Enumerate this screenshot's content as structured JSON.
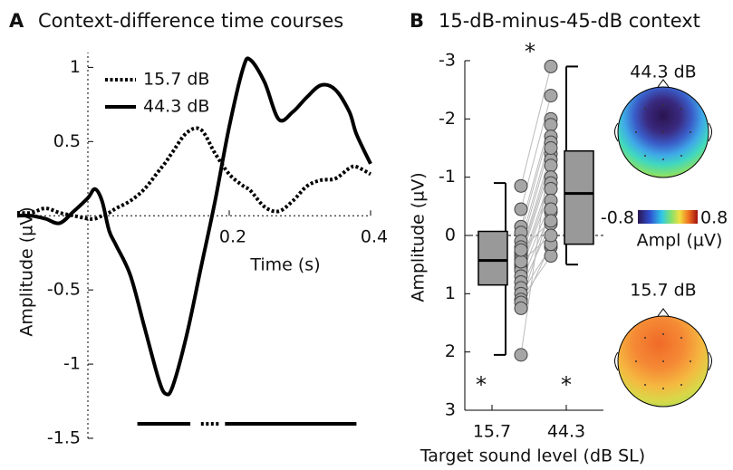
{
  "chart_data": [
    {
      "type": "line",
      "panel": "A",
      "title": "Context-difference time courses",
      "x_label": "Time (s)",
      "y_label": "Amplitude (µV)",
      "x": [
        -0.1,
        -0.08,
        -0.06,
        -0.04,
        -0.02,
        0,
        0.01,
        0.02,
        0.03,
        0.04,
        0.06,
        0.08,
        0.1,
        0.11,
        0.12,
        0.14,
        0.16,
        0.18,
        0.2,
        0.22,
        0.23,
        0.25,
        0.27,
        0.29,
        0.31,
        0.33,
        0.35,
        0.37,
        0.38,
        0.4
      ],
      "series": [
        {
          "name": "15.7 dB",
          "color": "#000000",
          "dash": "dotted",
          "values": [
            0.02,
            0.02,
            0.05,
            0.02,
            0,
            -0.02,
            -0.02,
            0,
            0.02,
            0.05,
            0.1,
            0.18,
            0.3,
            0.36,
            0.43,
            0.56,
            0.58,
            0.42,
            0.28,
            0.2,
            0.17,
            0.06,
            0.03,
            0.1,
            0.2,
            0.24,
            0.25,
            0.32,
            0.33,
            0.28
          ],
          "significant_intervals": [
            [
              0.16,
              0.187
            ]
          ]
        },
        {
          "name": "44.3 dB",
          "color": "#000000",
          "dash": "solid",
          "values": [
            0,
            0,
            -0.02,
            -0.05,
            0.03,
            0.12,
            0.18,
            0.1,
            -0.1,
            -0.2,
            -0.4,
            -0.75,
            -1.1,
            -1.2,
            -1.15,
            -0.8,
            -0.35,
            0.1,
            0.6,
            1.0,
            1.05,
            0.9,
            0.65,
            0.7,
            0.8,
            0.88,
            0.85,
            0.7,
            0.55,
            0.35
          ],
          "significant_intervals": [
            [
              0.07,
              0.145
            ],
            [
              0.194,
              0.38
            ]
          ]
        }
      ],
      "xlim": [
        -0.1,
        0.4
      ],
      "xticks": [
        0.2,
        0.4
      ],
      "ylim": [
        -1.5,
        1.1
      ],
      "yticks": [
        -1.5,
        -1,
        -0.5,
        0.5,
        1
      ],
      "legend": "upper left"
    },
    {
      "type": "box",
      "panel": "B",
      "title": "15-dB-minus-45-dB context",
      "x_label": "Target sound level (dB SL)",
      "y_label": "Amplitude (µV)",
      "categories": [
        "15.7",
        "44.3"
      ],
      "boxes": [
        {
          "whislo": -0.9,
          "q1": -0.07,
          "median": 0.43,
          "q3": 0.85,
          "whishi": 2.05
        },
        {
          "whislo": -2.9,
          "q1": -1.45,
          "median": -0.72,
          "q3": 0.15,
          "whishi": 0.5
        }
      ],
      "points": [
        [
          -0.85,
          -0.45,
          -0.15,
          -0.05,
          0.1,
          0.2,
          0.3,
          0.35,
          0.4,
          0.5,
          0.55,
          0.6,
          0.7,
          0.8,
          0.9,
          1.0,
          1.1,
          1.15,
          1.25,
          0.45,
          0.25,
          2.05
        ],
        [
          -2.9,
          -2.4,
          -2.0,
          -1.9,
          -1.7,
          -1.6,
          -1.4,
          -1.3,
          -1.2,
          -1.0,
          -0.9,
          -0.8,
          -0.6,
          -0.4,
          -0.2,
          0.2,
          0.35,
          -0.45,
          0.15,
          0,
          -0.25,
          -1.5
        ]
      ],
      "box_color": "#999999",
      "point_color": "#a6a6a6",
      "ylim": [
        -3,
        3
      ],
      "yticks": [
        -3,
        -2,
        -1,
        0,
        1,
        2,
        3
      ],
      "invert_y": true,
      "annotations": [
        "*",
        "*",
        "*"
      ],
      "topomaps": [
        {
          "title": "44.3 dB"
        },
        {
          "title": "15.7 dB"
        }
      ],
      "colorbar": {
        "label": "Ampl (µV)",
        "lim": [
          -0.8,
          0.8
        ]
      }
    }
  ]
}
